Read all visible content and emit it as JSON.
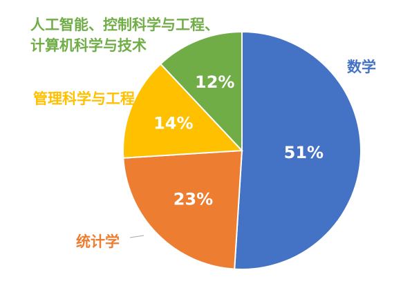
{
  "chart_data": {
    "type": "pie",
    "title": "",
    "start_angle_deg": 0,
    "direction": "clockwise",
    "slices": [
      {
        "label": [
          "数学"
        ],
        "value": 51,
        "value_label": "51%",
        "color": "#4472C4"
      },
      {
        "label": [
          "统计学"
        ],
        "value": 23,
        "value_label": "23%",
        "color": "#ED7D31"
      },
      {
        "label": [
          "管理科学与工程,"
        ],
        "value": 14,
        "value_label": "14%",
        "color": "#FFC000"
      },
      {
        "label": [
          "人工智能、控制科学与工程、",
          "计算机科学与技术"
        ],
        "value": 12,
        "value_label": "12%",
        "color": "#70AD47"
      }
    ]
  }
}
